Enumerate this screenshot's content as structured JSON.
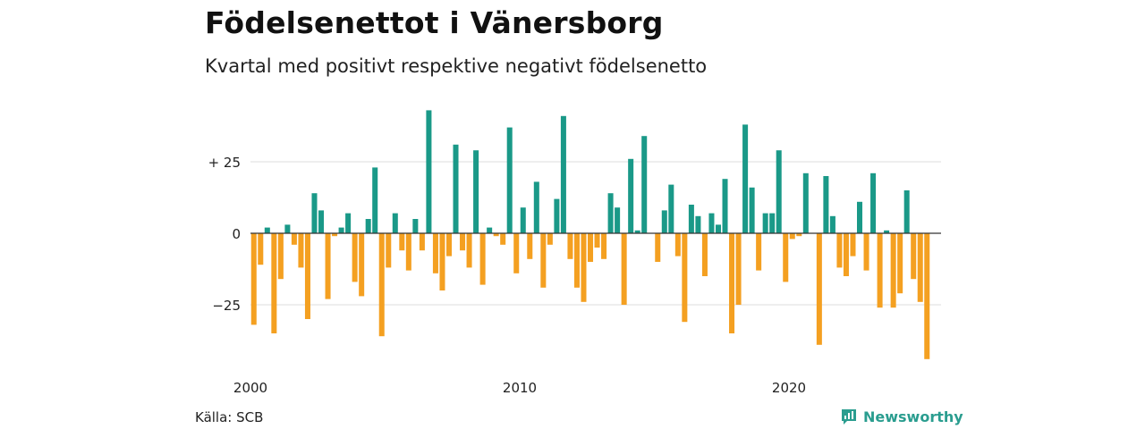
{
  "header": {
    "title": "Födelsenettot i Vänersborg",
    "subtitle": "Kvartal med positivt respektive negativt födelsenetto"
  },
  "footer": {
    "source": "Källa: SCB",
    "brand": "Newsworthy",
    "brand_icon": "chart-bubble-icon"
  },
  "chart_data": {
    "type": "bar",
    "title": "Födelsenettot i Vänersborg",
    "subtitle": "Kvartal med positivt respektive negativt födelsenetto",
    "xlabel": "",
    "ylabel": "",
    "x_start": 2000,
    "x_end": 2025,
    "periods_per_year": 4,
    "x_ticks": [
      2000,
      2010,
      2020
    ],
    "x_tick_labels": [
      "2000",
      "2010",
      "2020"
    ],
    "y_ticks": [
      25,
      0,
      -25
    ],
    "y_tick_labels": [
      "+ 25",
      "0",
      "−25"
    ],
    "ylim": [
      -50,
      50
    ],
    "grid": true,
    "colors": {
      "positive": "#1a9988",
      "negative": "#f4a021",
      "zero_line": "#333333",
      "grid": "#dddddd"
    },
    "values": [
      -32,
      -11,
      2,
      -35,
      -16,
      3,
      -4,
      -12,
      -30,
      14,
      8,
      -23,
      -1,
      2,
      7,
      -17,
      -22,
      5,
      23,
      -36,
      -12,
      7,
      -6,
      -13,
      5,
      -6,
      43,
      -14,
      -20,
      -8,
      31,
      -6,
      -12,
      29,
      -18,
      2,
      -1,
      -4,
      37,
      -14,
      9,
      -9,
      18,
      -19,
      -4,
      12,
      41,
      -9,
      -19,
      -24,
      -10,
      -5,
      -9,
      14,
      9,
      -25,
      26,
      1,
      34,
      0,
      -10,
      8,
      17,
      -8,
      -31,
      10,
      6,
      -15,
      7,
      3,
      19,
      -35,
      -25,
      38,
      16,
      -13,
      7,
      7,
      29,
      -17,
      -2,
      -1,
      21,
      0,
      -39,
      20,
      6,
      -12,
      -15,
      -8,
      11,
      -13,
      21,
      -26,
      1,
      -26,
      -21,
      15,
      -16,
      -24,
      -44
    ]
  }
}
